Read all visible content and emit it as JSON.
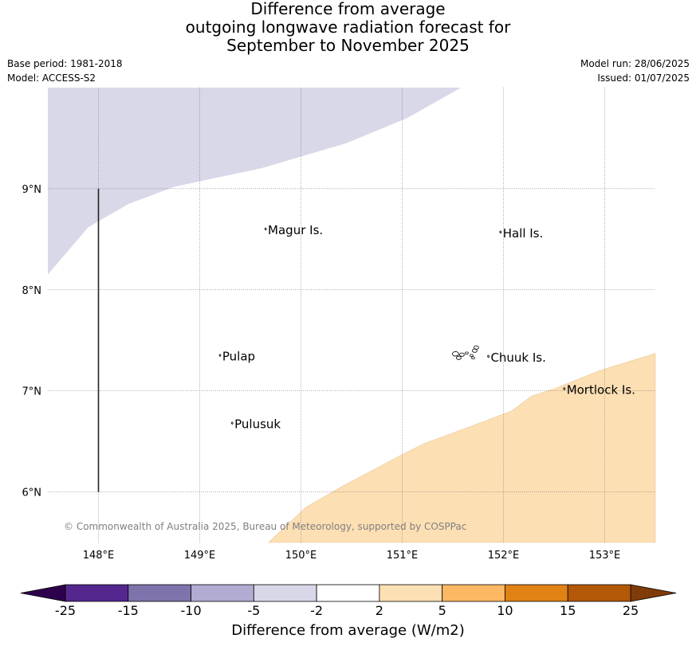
{
  "title": {
    "line1": "Difference from average",
    "line2": "outgoing longwave radiation forecast for",
    "line3": "September to November 2025"
  },
  "meta": {
    "base_period": "Base period: 1981-2018",
    "model": "Model: ACCESS-S2",
    "model_run": "Model run: 28/06/2025",
    "issued": "Issued: 01/07/2025"
  },
  "copyright": "© Commonwealth of Australia 2025, Bureau of Meteorology, supported by COSPPac",
  "map": {
    "lon_range": [
      147.5,
      153.5
    ],
    "lat_range": [
      5.5,
      10
    ],
    "lon_ticks": [
      {
        "value": 148,
        "label": "148°E"
      },
      {
        "value": 149,
        "label": "149°E"
      },
      {
        "value": 150,
        "label": "150°E"
      },
      {
        "value": 151,
        "label": "151°E"
      },
      {
        "value": 152,
        "label": "152°E"
      },
      {
        "value": 153,
        "label": "153°E"
      }
    ],
    "lat_ticks": [
      {
        "value": 9,
        "label": "9°N"
      },
      {
        "value": 8,
        "label": "8°N"
      },
      {
        "value": 7,
        "label": "7°N"
      },
      {
        "value": 6,
        "label": "6°N"
      }
    ],
    "places": [
      {
        "name": "Magur Is.",
        "lon": 149.65,
        "lat": 8.55
      },
      {
        "name": "Hall Is.",
        "lon": 151.97,
        "lat": 8.52
      },
      {
        "name": "Pulap",
        "lon": 149.2,
        "lat": 7.3
      },
      {
        "name": "Chuuk Is.",
        "lon": 151.85,
        "lat": 7.29
      },
      {
        "name": "Mortlock Is.",
        "lon": 152.6,
        "lat": 6.97
      },
      {
        "name": "Pulusuk",
        "lon": 149.32,
        "lat": 6.63
      }
    ],
    "regions": [
      {
        "category": "-5 to -2",
        "color": "#d8d8e9",
        "boundary": [
          [
            147.5,
            10
          ],
          [
            151.58,
            10
          ],
          [
            151.05,
            9.7
          ],
          [
            150.45,
            9.45
          ],
          [
            149.6,
            9.2
          ],
          [
            148.75,
            9.02
          ],
          [
            148.3,
            8.85
          ],
          [
            147.9,
            8.62
          ],
          [
            147.5,
            8.15
          ]
        ],
        "closed_on": "top-left"
      },
      {
        "category": "2 to 5",
        "color": "#fddfb4",
        "boundary": [
          [
            149.68,
            5.5
          ],
          [
            150.05,
            5.85
          ],
          [
            150.4,
            6.05
          ],
          [
            151.0,
            6.37
          ],
          [
            151.22,
            6.48
          ],
          [
            151.6,
            6.62
          ],
          [
            152.08,
            6.8
          ],
          [
            152.28,
            6.95
          ],
          [
            152.5,
            7.02
          ],
          [
            152.95,
            7.2
          ],
          [
            153.5,
            7.37
          ],
          [
            153.5,
            5.5
          ]
        ],
        "closed_on": "bottom-right"
      }
    ],
    "transect": {
      "lon": 148,
      "lat_from": 9,
      "lat_to": 6
    }
  },
  "colorbar": {
    "label": "Difference from average (W/m2)",
    "ticks": [
      "-25",
      "-15",
      "-10",
      "-5",
      "-2",
      "2",
      "5",
      "10",
      "15",
      "25"
    ],
    "colors": [
      "#54278f",
      "#8073ac",
      "#b2abd2",
      "#d8d8e9",
      "#ffffff",
      "#fddfb4",
      "#fdb863",
      "#e08214",
      "#b35806"
    ],
    "under_color": "#2d004b",
    "over_color": "#7f3b08"
  }
}
